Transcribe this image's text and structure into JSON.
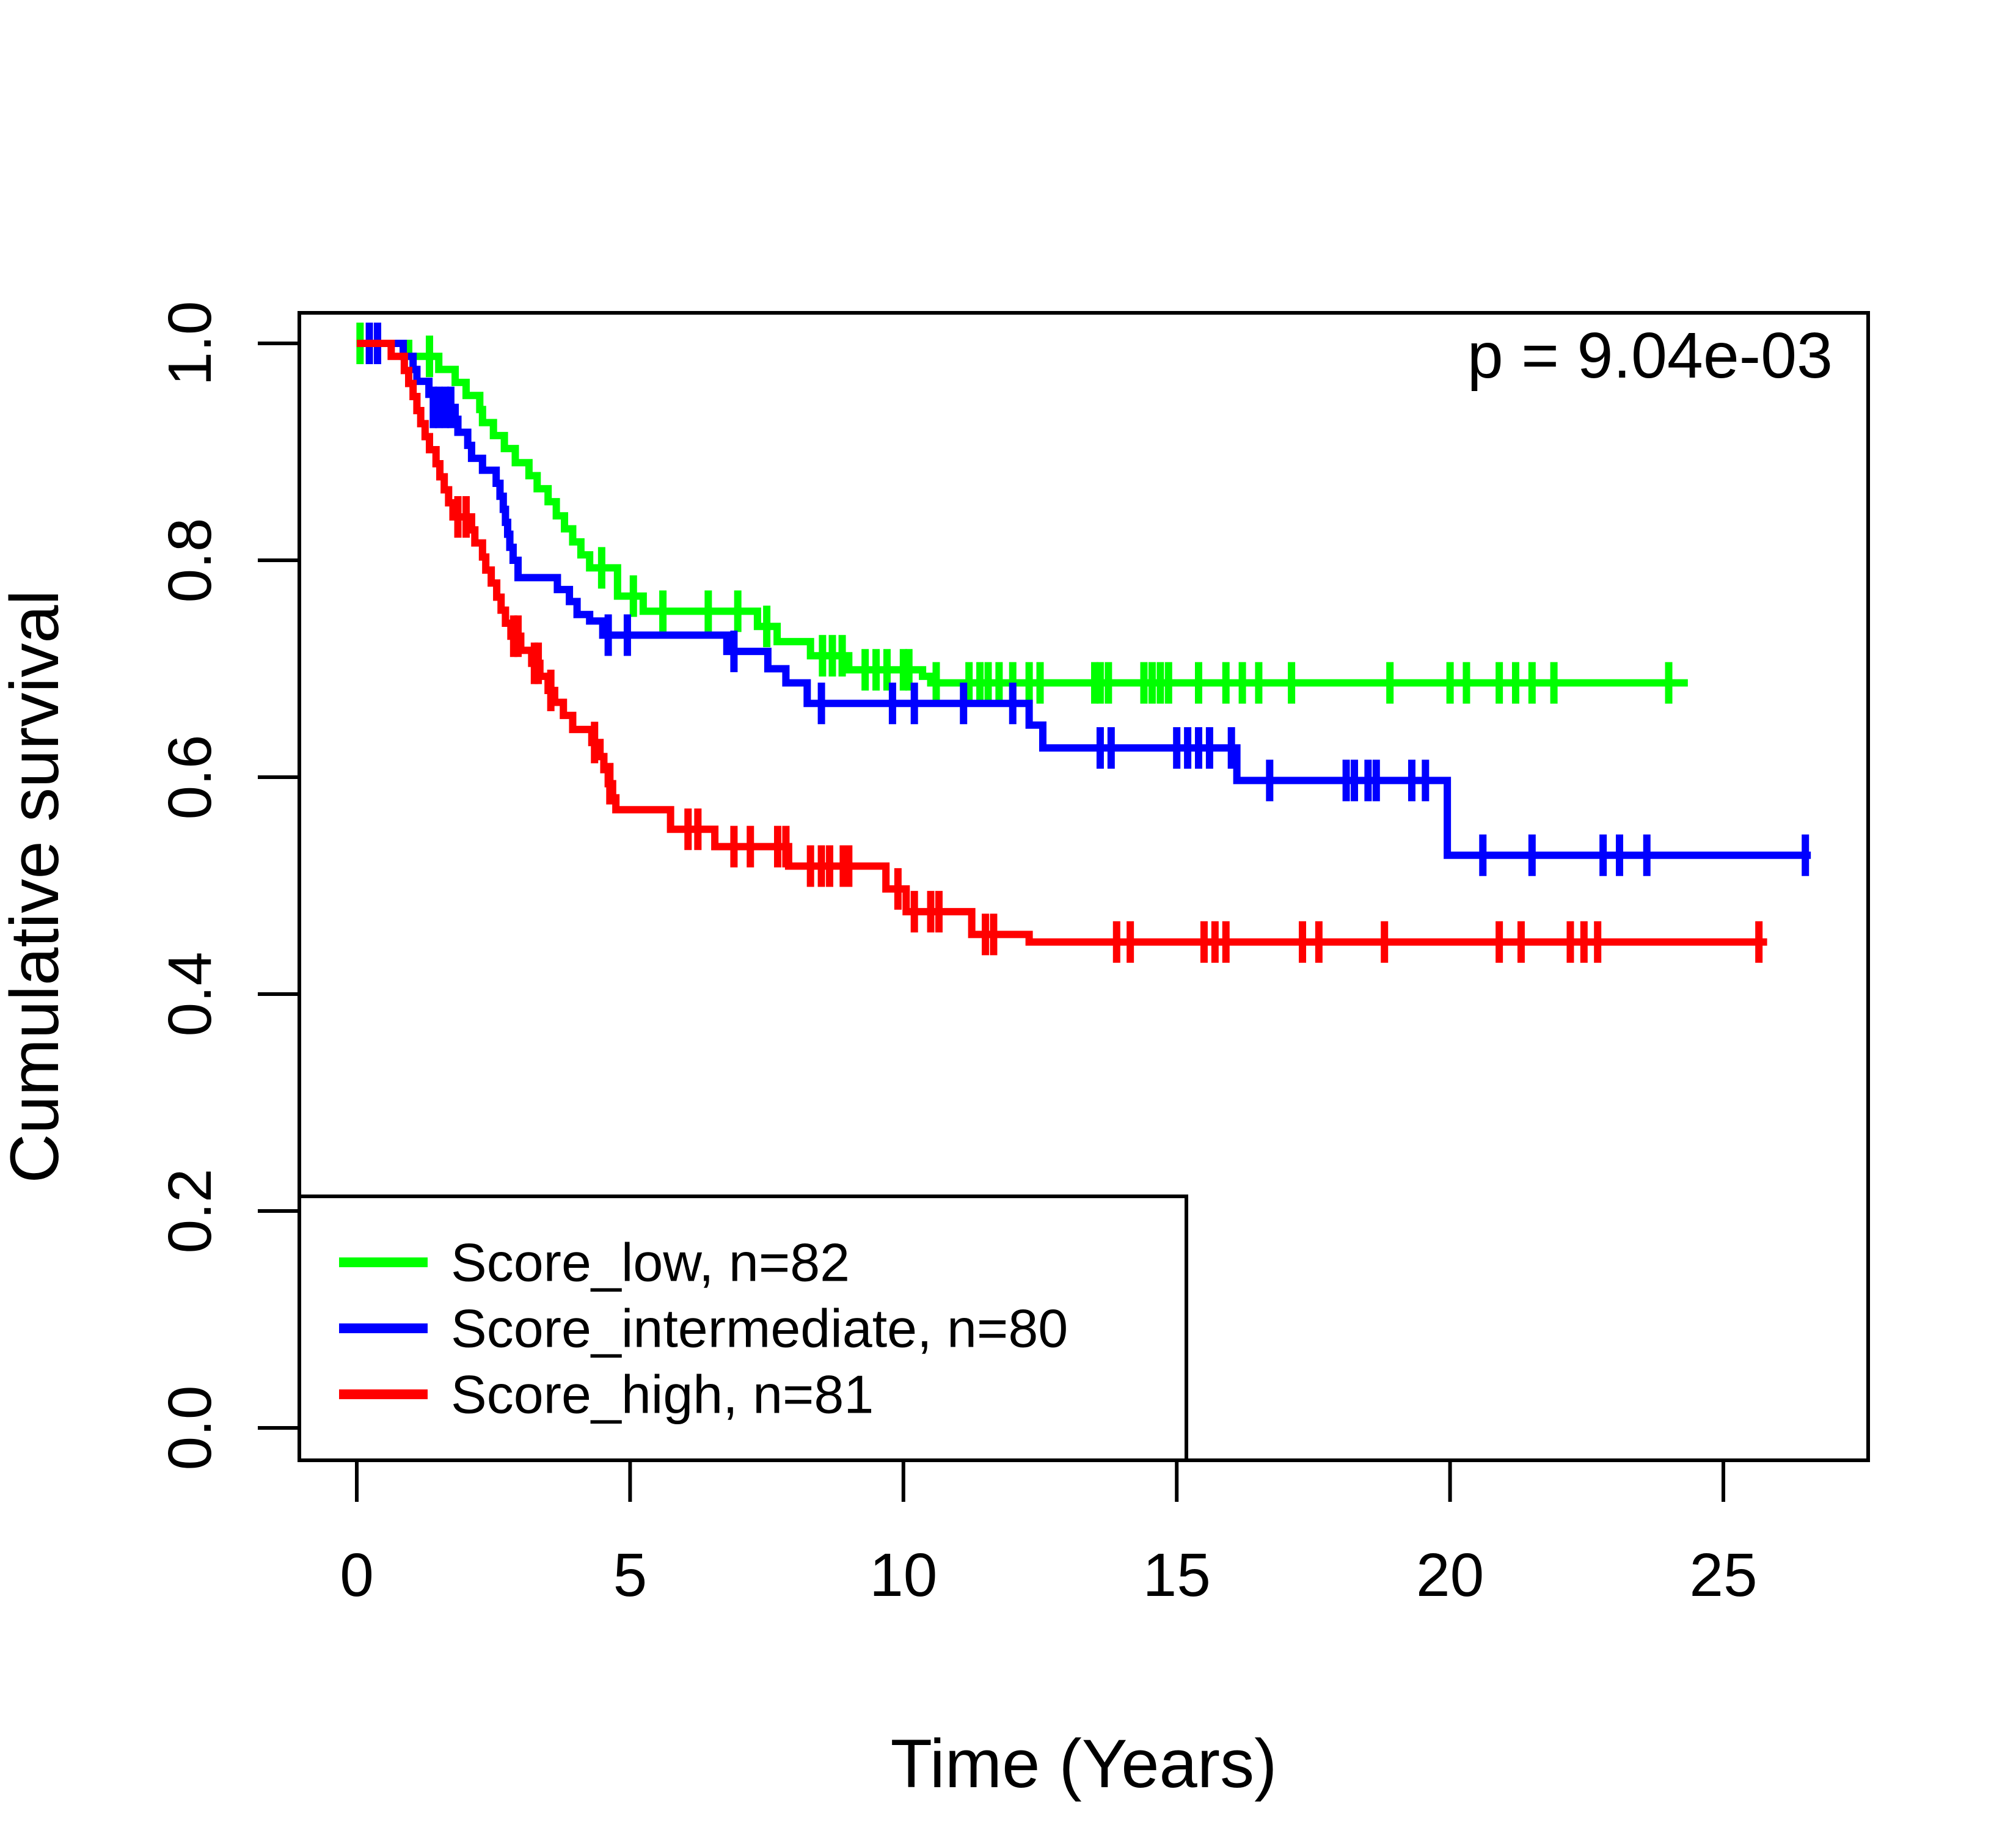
{
  "figure": {
    "background": "#ffffff",
    "frame_color": "#000000",
    "p_value": "p = 9.04e-03"
  },
  "chart_data": {
    "type": "line",
    "subtype": "kaplan-meier-step",
    "title": "",
    "xlabel": "Time (Years)",
    "ylabel": "Cumulative survival",
    "xlim": [
      -1.05,
      27.65
    ],
    "ylim": [
      -0.028,
      1.028
    ],
    "x_ticks": [
      0,
      5,
      10,
      15,
      20,
      25
    ],
    "y_ticks": [
      0.0,
      0.2,
      0.4,
      0.6,
      0.8,
      1.0
    ],
    "grid": false,
    "legend_position": "bottom-left",
    "p_value": "p = 9.04e-03",
    "series": [
      {
        "name": "Score_low",
        "legend_label": "Score_low, n=82",
        "n": 82,
        "color": "#00FF00",
        "start": [
          0,
          1.0
        ],
        "end_time": 24.35,
        "steps": [
          [
            0.95,
            0.988
          ],
          [
            1.5,
            0.976
          ],
          [
            1.8,
            0.964
          ],
          [
            2.0,
            0.952
          ],
          [
            2.25,
            0.939
          ],
          [
            2.3,
            0.927
          ],
          [
            2.5,
            0.915
          ],
          [
            2.7,
            0.903
          ],
          [
            2.9,
            0.89
          ],
          [
            3.15,
            0.878
          ],
          [
            3.3,
            0.866
          ],
          [
            3.5,
            0.854
          ],
          [
            3.65,
            0.841
          ],
          [
            3.8,
            0.829
          ],
          [
            3.95,
            0.817
          ],
          [
            4.1,
            0.805
          ],
          [
            4.26,
            0.793
          ],
          [
            4.77,
            0.767
          ],
          [
            5.24,
            0.753
          ],
          [
            7.33,
            0.739
          ],
          [
            7.69,
            0.725
          ],
          [
            8.3,
            0.712
          ],
          [
            9.0,
            0.699
          ],
          [
            10.35,
            0.693
          ],
          [
            10.5,
            0.687
          ]
        ],
        "censors": [
          [
            0.06,
            1.0
          ],
          [
            1.33,
            0.988
          ],
          [
            4.48,
            0.793
          ],
          [
            5.06,
            0.767
          ],
          [
            5.6,
            0.753
          ],
          [
            6.43,
            0.753
          ],
          [
            6.97,
            0.753
          ],
          [
            7.5,
            0.739
          ],
          [
            8.52,
            0.712
          ],
          [
            8.7,
            0.712
          ],
          [
            8.88,
            0.712
          ],
          [
            9.3,
            0.699
          ],
          [
            9.5,
            0.699
          ],
          [
            9.7,
            0.699
          ],
          [
            10.0,
            0.699
          ],
          [
            10.1,
            0.699
          ],
          [
            10.6,
            0.687
          ],
          [
            11.2,
            0.687
          ],
          [
            11.4,
            0.687
          ],
          [
            11.55,
            0.687
          ],
          [
            11.75,
            0.687
          ],
          [
            12.0,
            0.687
          ],
          [
            12.3,
            0.687
          ],
          [
            12.5,
            0.687
          ],
          [
            13.5,
            0.687
          ],
          [
            13.6,
            0.687
          ],
          [
            13.75,
            0.687
          ],
          [
            14.4,
            0.687
          ],
          [
            14.55,
            0.687
          ],
          [
            14.7,
            0.687
          ],
          [
            14.85,
            0.687
          ],
          [
            15.4,
            0.687
          ],
          [
            15.9,
            0.687
          ],
          [
            16.2,
            0.687
          ],
          [
            16.5,
            0.687
          ],
          [
            17.1,
            0.687
          ],
          [
            18.9,
            0.687
          ],
          [
            20.0,
            0.687
          ],
          [
            20.3,
            0.687
          ],
          [
            20.9,
            0.687
          ],
          [
            21.2,
            0.687
          ],
          [
            21.5,
            0.687
          ],
          [
            21.9,
            0.687
          ],
          [
            24.0,
            0.687
          ]
        ]
      },
      {
        "name": "Score_intermediate",
        "legend_label": "Score_intermediate, n=80",
        "n": 80,
        "color": "#0000FF",
        "start": [
          0,
          1.0
        ],
        "end_time": 26.6,
        "steps": [
          [
            0.85,
            0.988
          ],
          [
            1.03,
            0.976
          ],
          [
            1.1,
            0.965
          ],
          [
            1.32,
            0.953
          ],
          [
            1.45,
            0.941
          ],
          [
            1.8,
            0.93
          ],
          [
            1.85,
            0.918
          ],
          [
            2.03,
            0.906
          ],
          [
            2.1,
            0.894
          ],
          [
            2.3,
            0.883
          ],
          [
            2.55,
            0.871
          ],
          [
            2.62,
            0.859
          ],
          [
            2.68,
            0.847
          ],
          [
            2.72,
            0.835
          ],
          [
            2.76,
            0.824
          ],
          [
            2.8,
            0.812
          ],
          [
            2.86,
            0.8
          ],
          [
            2.95,
            0.784
          ],
          [
            3.67,
            0.773
          ],
          [
            3.89,
            0.762
          ],
          [
            4.03,
            0.75
          ],
          [
            4.26,
            0.744
          ],
          [
            4.5,
            0.731
          ],
          [
            6.77,
            0.716
          ],
          [
            7.52,
            0.7
          ],
          [
            7.85,
            0.687
          ],
          [
            8.24,
            0.668
          ],
          [
            12.3,
            0.648
          ],
          [
            12.55,
            0.627
          ],
          [
            16.1,
            0.597
          ],
          [
            19.95,
            0.528
          ]
        ],
        "censors": [
          [
            0.23,
            1.0
          ],
          [
            0.38,
            1.0
          ],
          [
            1.4,
            0.941
          ],
          [
            1.5,
            0.941
          ],
          [
            1.62,
            0.941
          ],
          [
            1.72,
            0.941
          ],
          [
            4.6,
            0.731
          ],
          [
            4.95,
            0.731
          ],
          [
            6.9,
            0.716
          ],
          [
            8.5,
            0.668
          ],
          [
            9.8,
            0.668
          ],
          [
            10.2,
            0.668
          ],
          [
            11.1,
            0.668
          ],
          [
            12.0,
            0.668
          ],
          [
            13.6,
            0.627
          ],
          [
            13.8,
            0.627
          ],
          [
            15.0,
            0.627
          ],
          [
            15.2,
            0.627
          ],
          [
            15.4,
            0.627
          ],
          [
            15.6,
            0.627
          ],
          [
            16.0,
            0.627
          ],
          [
            16.7,
            0.597
          ],
          [
            18.1,
            0.597
          ],
          [
            18.25,
            0.597
          ],
          [
            18.5,
            0.597
          ],
          [
            18.65,
            0.597
          ],
          [
            19.3,
            0.597
          ],
          [
            19.55,
            0.597
          ],
          [
            20.6,
            0.528
          ],
          [
            21.5,
            0.528
          ],
          [
            22.8,
            0.528
          ],
          [
            23.1,
            0.528
          ],
          [
            23.6,
            0.528
          ],
          [
            26.5,
            0.528
          ]
        ]
      },
      {
        "name": "Score_high",
        "legend_label": "Score_high, n=81",
        "n": 81,
        "color": "#FF0000",
        "start": [
          0,
          1.0
        ],
        "end_time": 25.8,
        "steps": [
          [
            0.63,
            0.988
          ],
          [
            0.87,
            0.975
          ],
          [
            0.95,
            0.963
          ],
          [
            1.03,
            0.951
          ],
          [
            1.1,
            0.938
          ],
          [
            1.17,
            0.926
          ],
          [
            1.25,
            0.914
          ],
          [
            1.33,
            0.902
          ],
          [
            1.45,
            0.889
          ],
          [
            1.52,
            0.877
          ],
          [
            1.6,
            0.865
          ],
          [
            1.68,
            0.853
          ],
          [
            1.76,
            0.84
          ],
          [
            2.1,
            0.828
          ],
          [
            2.16,
            0.816
          ],
          [
            2.3,
            0.803
          ],
          [
            2.36,
            0.791
          ],
          [
            2.46,
            0.779
          ],
          [
            2.56,
            0.766
          ],
          [
            2.64,
            0.754
          ],
          [
            2.72,
            0.742
          ],
          [
            2.82,
            0.73
          ],
          [
            3.0,
            0.717
          ],
          [
            3.2,
            0.705
          ],
          [
            3.35,
            0.693
          ],
          [
            3.5,
            0.68
          ],
          [
            3.62,
            0.669
          ],
          [
            3.78,
            0.657
          ],
          [
            3.95,
            0.644
          ],
          [
            4.3,
            0.632
          ],
          [
            4.45,
            0.619
          ],
          [
            4.52,
            0.607
          ],
          [
            4.6,
            0.594
          ],
          [
            4.68,
            0.581
          ],
          [
            4.74,
            0.57
          ],
          [
            5.74,
            0.552
          ],
          [
            6.55,
            0.536
          ],
          [
            7.9,
            0.518
          ],
          [
            9.68,
            0.497
          ],
          [
            10.05,
            0.476
          ],
          [
            11.25,
            0.455
          ],
          [
            12.3,
            0.448
          ]
        ],
        "censors": [
          [
            1.85,
            0.84
          ],
          [
            2.0,
            0.84
          ],
          [
            2.87,
            0.73
          ],
          [
            2.95,
            0.73
          ],
          [
            3.25,
            0.705
          ],
          [
            3.32,
            0.705
          ],
          [
            3.55,
            0.68
          ],
          [
            4.35,
            0.632
          ],
          [
            4.63,
            0.594
          ],
          [
            6.06,
            0.552
          ],
          [
            6.24,
            0.552
          ],
          [
            6.9,
            0.536
          ],
          [
            7.2,
            0.536
          ],
          [
            7.7,
            0.536
          ],
          [
            7.85,
            0.536
          ],
          [
            8.3,
            0.518
          ],
          [
            8.5,
            0.518
          ],
          [
            8.65,
            0.518
          ],
          [
            8.9,
            0.518
          ],
          [
            9.0,
            0.518
          ],
          [
            9.9,
            0.497
          ],
          [
            10.2,
            0.476
          ],
          [
            10.5,
            0.476
          ],
          [
            10.65,
            0.476
          ],
          [
            11.5,
            0.455
          ],
          [
            11.65,
            0.455
          ],
          [
            13.9,
            0.448
          ],
          [
            14.15,
            0.448
          ],
          [
            15.5,
            0.448
          ],
          [
            15.7,
            0.448
          ],
          [
            15.9,
            0.448
          ],
          [
            17.3,
            0.448
          ],
          [
            17.6,
            0.448
          ],
          [
            18.8,
            0.448
          ],
          [
            20.9,
            0.448
          ],
          [
            21.3,
            0.448
          ],
          [
            22.2,
            0.448
          ],
          [
            22.45,
            0.448
          ],
          [
            22.7,
            0.448
          ],
          [
            25.65,
            0.448
          ]
        ]
      }
    ]
  }
}
